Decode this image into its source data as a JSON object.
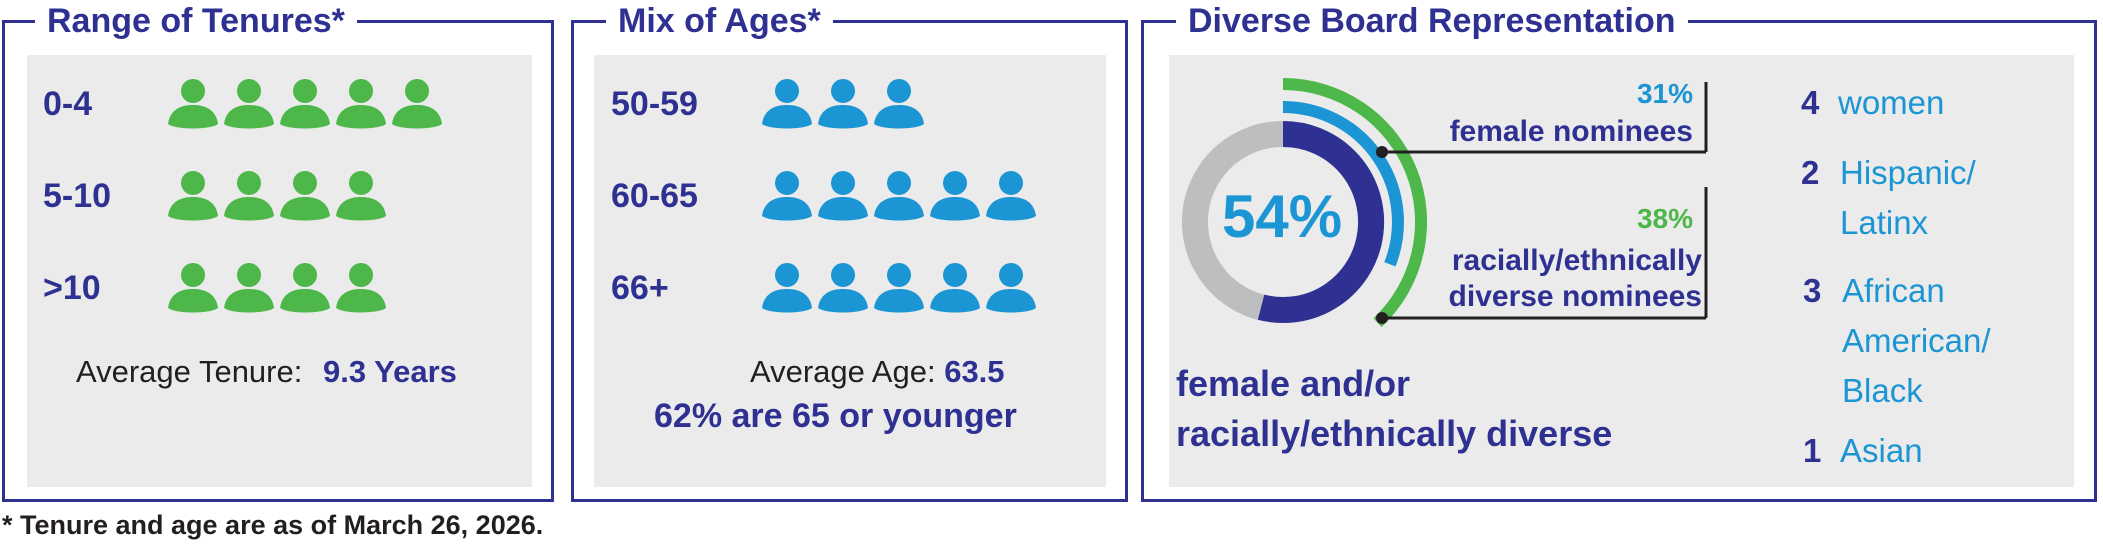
{
  "colors": {
    "navy": "#2e3192",
    "green": "#4db749",
    "blue": "#1b95d3",
    "gray": "#bcbec0",
    "panel_bg": "#ebebeb"
  },
  "footnote": "* Tenure and age are as of March 26, 2026.",
  "chart_data": [
    {
      "type": "pictograph",
      "title": "Range of Tenures*",
      "icon": "person-icon",
      "color": "#4db749",
      "categories": [
        "0-4",
        "5-10",
        ">10"
      ],
      "values": [
        5,
        4,
        4
      ],
      "average_label": "Average Tenure:",
      "average_value": "9.3 Years"
    },
    {
      "type": "pictograph",
      "title": "Mix of Ages*",
      "icon": "person-icon",
      "color": "#1b95d3",
      "categories": [
        "50-59",
        "60-65",
        "66+"
      ],
      "values": [
        3,
        5,
        5
      ],
      "average_label": "Average Age:",
      "average_value": "63.5",
      "summary": "62% are 65 or younger"
    },
    {
      "type": "donut",
      "title": "Diverse Board Representation",
      "center_label": "54%",
      "composite": {
        "value": 54,
        "label_line1": "female and/or",
        "label_line2": "racially/ethnically diverse"
      },
      "series": [
        {
          "name": "female nominees",
          "value": 31,
          "pct_label": "31%",
          "color": "#1b95d3"
        },
        {
          "name": "racially/ethnically diverse nominees",
          "value": 38,
          "pct_label": "38%",
          "label_line1": "racially/ethnically",
          "label_line2": "diverse nominees",
          "color": "#4db749"
        }
      ],
      "breakdown": [
        {
          "count": "4",
          "label": "women"
        },
        {
          "count": "2",
          "label": "Hispanic/ Latinx",
          "line1": "Hispanic/",
          "line2": "Latinx"
        },
        {
          "count": "3",
          "label": "African American/ Black",
          "line1": "African",
          "line2": "American/",
          "line3": "Black"
        },
        {
          "count": "1",
          "label": "Asian"
        }
      ]
    }
  ]
}
